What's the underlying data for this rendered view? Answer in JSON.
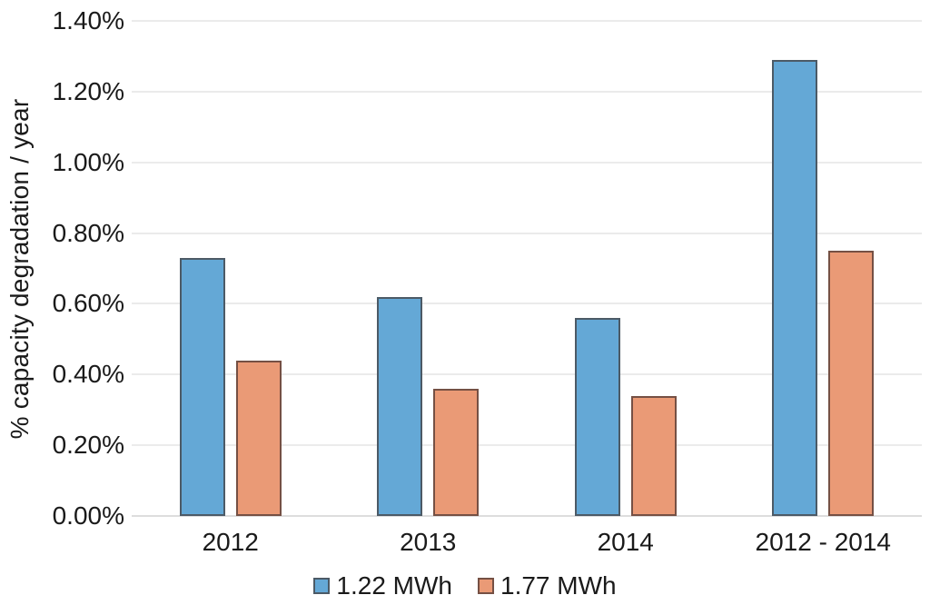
{
  "chart_data": {
    "type": "bar",
    "title": "",
    "xlabel": "",
    "ylabel": "% capacity degradation / year",
    "categories": [
      "2012",
      "2013",
      "2014",
      "2012 - 2014"
    ],
    "series": [
      {
        "name": "1.22 MWh",
        "color": "#64A8D6",
        "border_color": "#4C5A66",
        "values": [
          0.73,
          0.62,
          0.56,
          1.29
        ]
      },
      {
        "name": "1.77 MWh",
        "color": "#EA9A76",
        "border_color": "#755044",
        "values": [
          0.44,
          0.36,
          0.34,
          0.75
        ]
      }
    ],
    "ylim": [
      0,
      1.4
    ],
    "y_ticks": [
      {
        "value": 0.0,
        "label": "0.00%"
      },
      {
        "value": 0.2,
        "label": "0.20%"
      },
      {
        "value": 0.4,
        "label": "0.40%"
      },
      {
        "value": 0.6,
        "label": "0.60%"
      },
      {
        "value": 0.8,
        "label": "0.80%"
      },
      {
        "value": 1.0,
        "label": "1.00%"
      },
      {
        "value": 1.2,
        "label": "1.20%"
      },
      {
        "value": 1.4,
        "label": "1.40%"
      }
    ],
    "grid": true,
    "legend_position": "bottom",
    "colors": {
      "background": "#FFFFFF",
      "gridline": "#EBEBEB",
      "axis_line": "#DDDDDD",
      "text": "#1A1A1A"
    }
  }
}
